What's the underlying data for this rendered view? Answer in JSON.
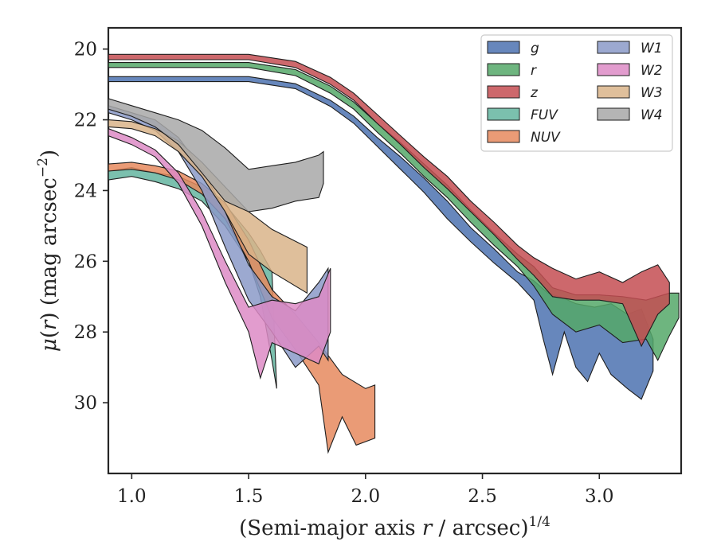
{
  "chart_data": {
    "type": "area",
    "xlabel": "(Semi-major axis r / arcsec)",
    "xlabel_parts": {
      "prefix": "(Semi-major axis ",
      "var": "r",
      "suffix": " / arcsec)",
      "exponent": "1/4"
    },
    "ylabel": "μ(r) (mag arcsec⁻²)",
    "ylabel_parts": {
      "mu": "μ(",
      "var": "r",
      "mid": ") (mag arcsec",
      "exponent": "−2",
      "end": ")"
    },
    "xlim": [
      0.9,
      3.35
    ],
    "ylim": [
      32,
      19.4
    ],
    "y_inverted": true,
    "xticks": [
      1.0,
      1.5,
      2.0,
      2.5,
      3.0
    ],
    "xtick_labels": [
      "1.0",
      "1.5",
      "2.0",
      "2.5",
      "3.0"
    ],
    "yticks": [
      20,
      22,
      24,
      26,
      28,
      30
    ],
    "ytick_labels": [
      "20",
      "22",
      "24",
      "26",
      "28",
      "30"
    ],
    "grid": false,
    "legend_placement": "top-right",
    "legend_columns": 2,
    "series": [
      {
        "name": "g",
        "color": "#4c72b0",
        "upper": [
          [
            0.9,
            20.78
          ],
          [
            1.5,
            20.78
          ],
          [
            1.7,
            20.98
          ],
          [
            1.85,
            21.45
          ],
          [
            1.95,
            21.9
          ],
          [
            2.05,
            22.5
          ],
          [
            2.15,
            23.05
          ],
          [
            2.25,
            23.65
          ],
          [
            2.35,
            24.3
          ],
          [
            2.45,
            25.05
          ],
          [
            2.55,
            25.65
          ],
          [
            2.65,
            26.3
          ],
          [
            2.72,
            26.55
          ],
          [
            2.78,
            26.9
          ],
          [
            2.85,
            27.05
          ],
          [
            2.9,
            27.2
          ],
          [
            2.98,
            27.3
          ],
          [
            3.05,
            27.2
          ],
          [
            3.12,
            27.5
          ],
          [
            3.18,
            27.35
          ],
          [
            3.23,
            28.2
          ]
        ],
        "lower": [
          [
            0.9,
            20.92
          ],
          [
            1.5,
            20.92
          ],
          [
            1.7,
            21.12
          ],
          [
            1.85,
            21.62
          ],
          [
            1.95,
            22.1
          ],
          [
            2.05,
            22.75
          ],
          [
            2.15,
            23.4
          ],
          [
            2.25,
            24.05
          ],
          [
            2.35,
            24.8
          ],
          [
            2.45,
            25.45
          ],
          [
            2.55,
            26.05
          ],
          [
            2.65,
            26.6
          ],
          [
            2.72,
            27.1
          ],
          [
            2.76,
            28.2
          ],
          [
            2.8,
            29.2
          ],
          [
            2.85,
            28.0
          ],
          [
            2.9,
            29.0
          ],
          [
            2.95,
            29.4
          ],
          [
            3.0,
            28.6
          ],
          [
            3.05,
            29.2
          ],
          [
            3.12,
            29.6
          ],
          [
            3.18,
            29.9
          ],
          [
            3.23,
            29.1
          ]
        ]
      },
      {
        "name": "r",
        "color": "#55a868",
        "upper": [
          [
            0.9,
            20.38
          ],
          [
            1.5,
            20.38
          ],
          [
            1.7,
            20.58
          ],
          [
            1.85,
            21.05
          ],
          [
            1.95,
            21.5
          ],
          [
            2.05,
            22.1
          ],
          [
            2.15,
            22.65
          ],
          [
            2.25,
            23.25
          ],
          [
            2.35,
            23.85
          ],
          [
            2.45,
            24.55
          ],
          [
            2.55,
            25.2
          ],
          [
            2.65,
            25.8
          ],
          [
            2.72,
            26.15
          ],
          [
            2.8,
            26.75
          ],
          [
            2.9,
            26.95
          ],
          [
            3.0,
            26.95
          ],
          [
            3.1,
            27.0
          ],
          [
            3.2,
            27.1
          ],
          [
            3.3,
            26.9
          ],
          [
            3.34,
            26.9
          ]
        ],
        "lower": [
          [
            0.9,
            20.52
          ],
          [
            1.5,
            20.52
          ],
          [
            1.7,
            20.75
          ],
          [
            1.85,
            21.25
          ],
          [
            1.95,
            21.7
          ],
          [
            2.05,
            22.35
          ],
          [
            2.15,
            22.95
          ],
          [
            2.25,
            23.6
          ],
          [
            2.35,
            24.2
          ],
          [
            2.45,
            24.9
          ],
          [
            2.55,
            25.55
          ],
          [
            2.65,
            26.15
          ],
          [
            2.72,
            26.7
          ],
          [
            2.8,
            27.5
          ],
          [
            2.9,
            28.0
          ],
          [
            3.0,
            27.8
          ],
          [
            3.1,
            28.3
          ],
          [
            3.2,
            28.2
          ],
          [
            3.25,
            28.8
          ],
          [
            3.3,
            28.1
          ],
          [
            3.34,
            27.6
          ]
        ]
      },
      {
        "name": "z",
        "color": "#c44e52",
        "upper": [
          [
            0.9,
            20.15
          ],
          [
            1.5,
            20.15
          ],
          [
            1.7,
            20.35
          ],
          [
            1.85,
            20.8
          ],
          [
            1.95,
            21.25
          ],
          [
            2.05,
            21.85
          ],
          [
            2.15,
            22.45
          ],
          [
            2.25,
            23.05
          ],
          [
            2.35,
            23.6
          ],
          [
            2.45,
            24.3
          ],
          [
            2.55,
            24.9
          ],
          [
            2.65,
            25.55
          ],
          [
            2.72,
            25.9
          ],
          [
            2.8,
            26.2
          ],
          [
            2.9,
            26.5
          ],
          [
            3.0,
            26.3
          ],
          [
            3.1,
            26.6
          ],
          [
            3.18,
            26.3
          ],
          [
            3.25,
            26.1
          ],
          [
            3.3,
            26.6
          ]
        ],
        "lower": [
          [
            0.9,
            20.3
          ],
          [
            1.5,
            20.3
          ],
          [
            1.7,
            20.52
          ],
          [
            1.85,
            21.0
          ],
          [
            1.95,
            21.45
          ],
          [
            2.05,
            22.1
          ],
          [
            2.15,
            22.7
          ],
          [
            2.25,
            23.35
          ],
          [
            2.35,
            23.95
          ],
          [
            2.45,
            24.6
          ],
          [
            2.55,
            25.25
          ],
          [
            2.65,
            25.95
          ],
          [
            2.72,
            26.4
          ],
          [
            2.8,
            27.0
          ],
          [
            2.9,
            27.1
          ],
          [
            3.0,
            27.1
          ],
          [
            3.1,
            27.2
          ],
          [
            3.18,
            28.4
          ],
          [
            3.25,
            27.5
          ],
          [
            3.3,
            27.2
          ]
        ]
      },
      {
        "name": "FUV",
        "color": "#64b5a0",
        "upper": [
          [
            0.9,
            23.45
          ],
          [
            1.0,
            23.35
          ],
          [
            1.1,
            23.5
          ],
          [
            1.2,
            23.6
          ],
          [
            1.3,
            23.9
          ],
          [
            1.4,
            24.4
          ],
          [
            1.5,
            25.2
          ],
          [
            1.55,
            25.7
          ],
          [
            1.6,
            26.3
          ]
        ],
        "lower": [
          [
            0.9,
            23.7
          ],
          [
            1.0,
            23.6
          ],
          [
            1.1,
            23.75
          ],
          [
            1.2,
            23.95
          ],
          [
            1.3,
            24.3
          ],
          [
            1.4,
            25.0
          ],
          [
            1.5,
            26.0
          ],
          [
            1.55,
            27.0
          ],
          [
            1.6,
            28.8
          ],
          [
            1.62,
            29.6
          ]
        ]
      },
      {
        "name": "NUV",
        "color": "#e68a5e",
        "upper": [
          [
            0.9,
            23.25
          ],
          [
            1.0,
            23.2
          ],
          [
            1.1,
            23.3
          ],
          [
            1.2,
            23.45
          ],
          [
            1.3,
            23.8
          ],
          [
            1.4,
            24.35
          ],
          [
            1.5,
            25.4
          ],
          [
            1.6,
            26.8
          ],
          [
            1.7,
            27.5
          ],
          [
            1.8,
            28.3
          ],
          [
            1.9,
            29.2
          ],
          [
            2.0,
            29.6
          ],
          [
            2.04,
            29.5
          ]
        ],
        "lower": [
          [
            0.9,
            23.45
          ],
          [
            1.0,
            23.4
          ],
          [
            1.1,
            23.5
          ],
          [
            1.2,
            23.7
          ],
          [
            1.3,
            24.1
          ],
          [
            1.4,
            24.8
          ],
          [
            1.5,
            26.0
          ],
          [
            1.6,
            27.6
          ],
          [
            1.7,
            28.5
          ],
          [
            1.8,
            29.5
          ],
          [
            1.84,
            31.4
          ],
          [
            1.9,
            30.4
          ],
          [
            1.96,
            31.2
          ],
          [
            2.04,
            31.0
          ]
        ]
      },
      {
        "name": "W1",
        "color": "#8b9ac8",
        "upper": [
          [
            0.9,
            21.6
          ],
          [
            1.0,
            21.8
          ],
          [
            1.1,
            22.0
          ],
          [
            1.2,
            22.5
          ],
          [
            1.3,
            23.4
          ],
          [
            1.4,
            24.6
          ],
          [
            1.5,
            26.1
          ],
          [
            1.6,
            27.0
          ],
          [
            1.7,
            27.4
          ],
          [
            1.8,
            26.6
          ],
          [
            1.84,
            26.2
          ]
        ],
        "lower": [
          [
            0.9,
            21.8
          ],
          [
            1.0,
            22.0
          ],
          [
            1.1,
            22.3
          ],
          [
            1.2,
            22.9
          ],
          [
            1.3,
            24.0
          ],
          [
            1.4,
            25.6
          ],
          [
            1.5,
            27.1
          ],
          [
            1.6,
            28.0
          ],
          [
            1.7,
            29.0
          ],
          [
            1.8,
            28.4
          ],
          [
            1.84,
            28.8
          ]
        ]
      },
      {
        "name": "W2",
        "color": "#dd8bc6",
        "upper": [
          [
            0.9,
            22.25
          ],
          [
            1.0,
            22.5
          ],
          [
            1.1,
            22.85
          ],
          [
            1.2,
            23.5
          ],
          [
            1.3,
            24.6
          ],
          [
            1.4,
            26.0
          ],
          [
            1.5,
            27.3
          ],
          [
            1.6,
            27.1
          ],
          [
            1.7,
            27.2
          ],
          [
            1.8,
            27.0
          ],
          [
            1.85,
            26.2
          ]
        ],
        "lower": [
          [
            0.9,
            22.45
          ],
          [
            1.0,
            22.7
          ],
          [
            1.1,
            23.05
          ],
          [
            1.2,
            23.8
          ],
          [
            1.3,
            25.0
          ],
          [
            1.4,
            26.6
          ],
          [
            1.5,
            28.0
          ],
          [
            1.55,
            29.3
          ],
          [
            1.6,
            28.3
          ],
          [
            1.7,
            28.6
          ],
          [
            1.8,
            28.9
          ],
          [
            1.85,
            28.0
          ]
        ]
      },
      {
        "name": "W3",
        "color": "#d9b48a",
        "upper": [
          [
            0.9,
            22.0
          ],
          [
            1.0,
            22.05
          ],
          [
            1.1,
            22.25
          ],
          [
            1.2,
            22.6
          ],
          [
            1.3,
            23.2
          ],
          [
            1.4,
            23.9
          ],
          [
            1.5,
            24.6
          ],
          [
            1.6,
            25.1
          ],
          [
            1.75,
            25.6
          ]
        ],
        "lower": [
          [
            0.9,
            22.2
          ],
          [
            1.0,
            22.25
          ],
          [
            1.1,
            22.45
          ],
          [
            1.2,
            22.9
          ],
          [
            1.3,
            23.6
          ],
          [
            1.4,
            24.6
          ],
          [
            1.5,
            25.8
          ],
          [
            1.6,
            26.3
          ],
          [
            1.75,
            26.9
          ]
        ]
      },
      {
        "name": "W4",
        "color": "#a8a8a8",
        "upper": [
          [
            0.9,
            21.4
          ],
          [
            1.0,
            21.6
          ],
          [
            1.1,
            21.8
          ],
          [
            1.2,
            22.0
          ],
          [
            1.3,
            22.3
          ],
          [
            1.4,
            22.8
          ],
          [
            1.5,
            23.4
          ],
          [
            1.6,
            23.3
          ],
          [
            1.7,
            23.2
          ],
          [
            1.8,
            23.0
          ],
          [
            1.82,
            22.9
          ]
        ],
        "lower": [
          [
            0.9,
            21.7
          ],
          [
            1.0,
            21.9
          ],
          [
            1.1,
            22.2
          ],
          [
            1.2,
            22.7
          ],
          [
            1.3,
            23.5
          ],
          [
            1.4,
            24.3
          ],
          [
            1.5,
            24.6
          ],
          [
            1.6,
            24.5
          ],
          [
            1.7,
            24.3
          ],
          [
            1.8,
            24.2
          ],
          [
            1.82,
            23.8
          ]
        ]
      }
    ]
  }
}
